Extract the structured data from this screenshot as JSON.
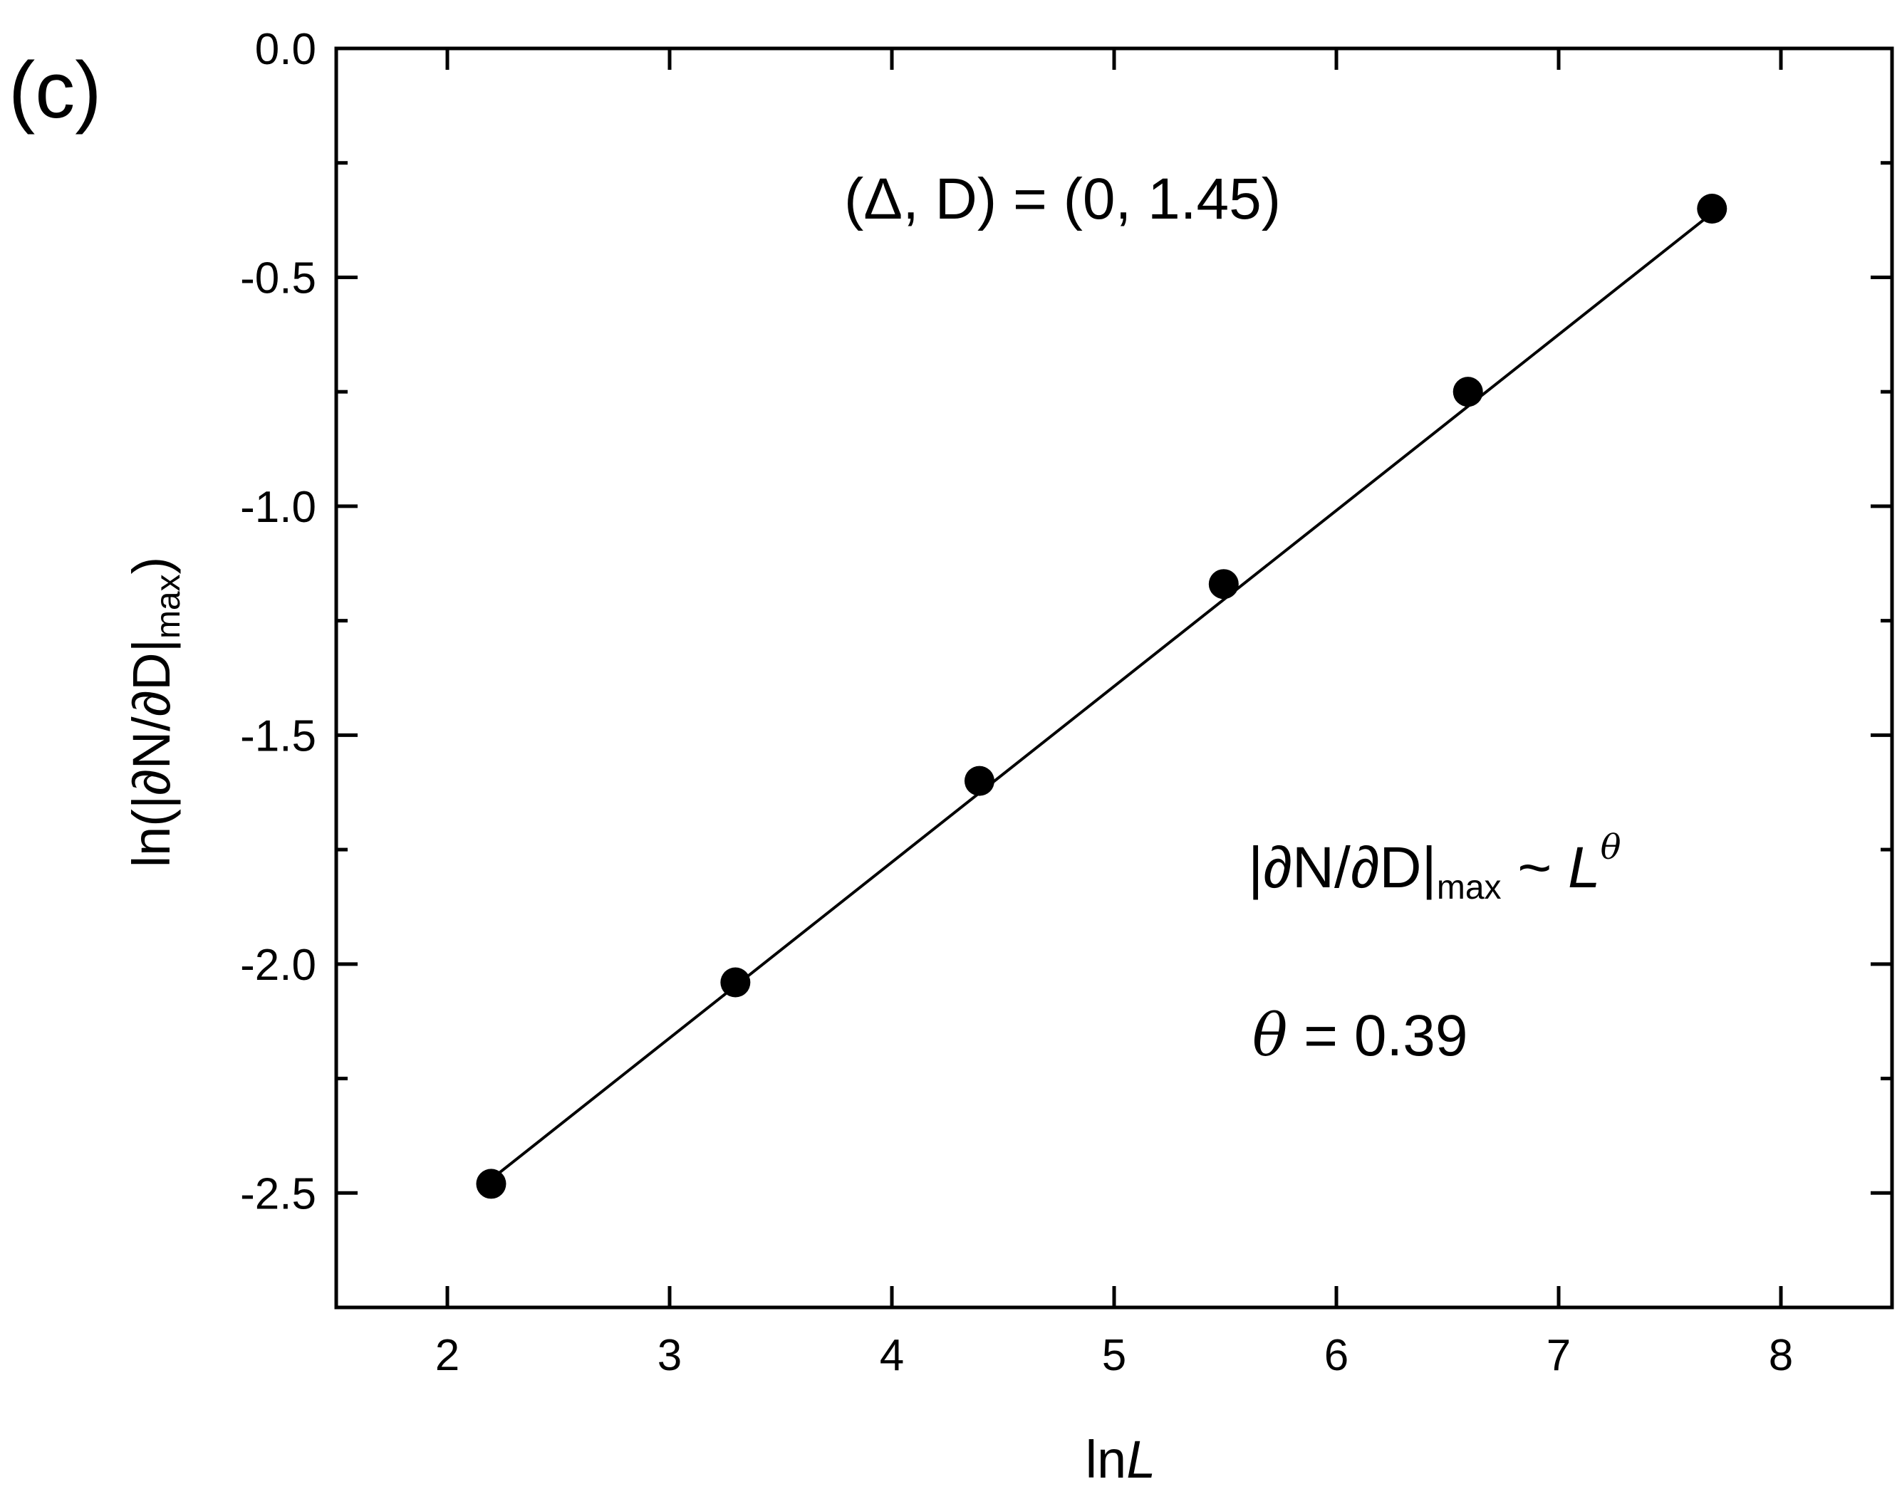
{
  "panel_label": "(c)",
  "chart_data": {
    "type": "scatter",
    "title": "",
    "xlabel": {
      "prefix": "ln",
      "var": "L"
    },
    "ylabel": {
      "main": "ln(|∂N/∂D|",
      "sub": "max",
      "close": ")"
    },
    "xlim": [
      1.5,
      8.5
    ],
    "ylim": [
      -2.75,
      0.0
    ],
    "x_ticks": [
      2,
      3,
      4,
      5,
      6,
      7,
      8
    ],
    "y_ticks": [
      0.0,
      -0.5,
      -1.0,
      -1.5,
      -2.0,
      -2.5
    ],
    "x_tick_labels": [
      "2",
      "3",
      "4",
      "5",
      "6",
      "7",
      "8"
    ],
    "y_tick_labels": [
      "0.0",
      "-0.5",
      "-1.0",
      "-1.5",
      "-2.0",
      "-2.5"
    ],
    "grid": false,
    "series": [
      {
        "marker": "filled-circle",
        "color": "#000000",
        "x": [
          2.197,
          3.296,
          4.394,
          5.493,
          6.592,
          7.69
        ],
        "y": [
          -2.48,
          -2.04,
          -1.6,
          -1.17,
          -0.75,
          -0.35
        ]
      }
    ],
    "fit_line": {
      "x": [
        2.197,
        7.69
      ],
      "y": [
        -2.47,
        -0.36
      ]
    },
    "annotations": {
      "params": "(Δ, D) = (0, 1.45)",
      "scaling": {
        "lhs": "|∂N/∂D|",
        "sub": "max",
        "tilde": " ~ ",
        "var": "L",
        "exp": "θ"
      },
      "theta": {
        "sym": "θ",
        "text": " = 0.39"
      }
    }
  }
}
